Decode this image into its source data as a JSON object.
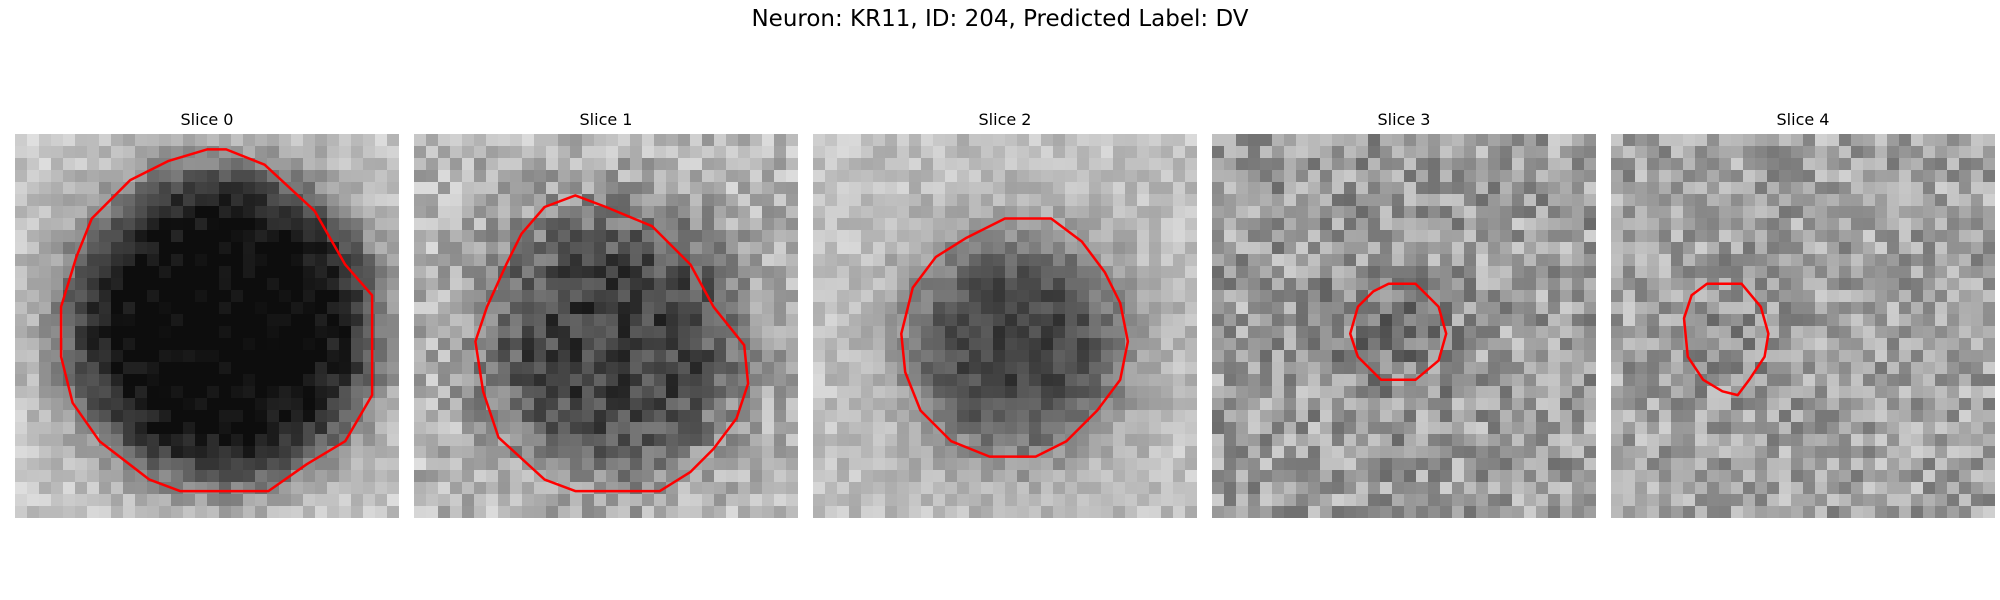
{
  "figure": {
    "title": "Neuron: KR11, ID: 204, Predicted Label: DV",
    "contour_color": "#ff0000"
  },
  "slices": [
    {
      "label": "Slice 0"
    },
    {
      "label": "Slice 1"
    },
    {
      "label": "Slice 2"
    },
    {
      "label": "Slice 3"
    },
    {
      "label": "Slice 4"
    }
  ]
}
